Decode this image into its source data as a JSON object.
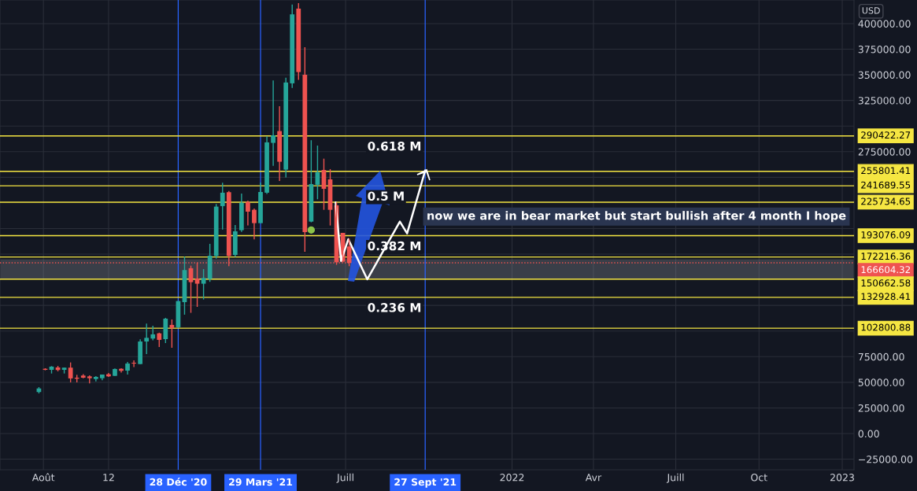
{
  "chart_data": {
    "type": "candlestick",
    "ylabel": "USD",
    "x": [
      "2020-07-27",
      "2020-08-03",
      "2020-08-10",
      "2020-08-17",
      "2020-08-24",
      "2020-08-31",
      "2020-09-07",
      "2020-09-14",
      "2020-09-21",
      "2020-09-28",
      "2020-10-05",
      "2020-10-12",
      "2020-10-19",
      "2020-10-26",
      "2020-11-02",
      "2020-11-09",
      "2020-11-16",
      "2020-11-23",
      "2020-11-30",
      "2020-12-07",
      "2020-12-14",
      "2020-12-21",
      "2020-12-28",
      "2021-01-04",
      "2021-01-11",
      "2021-01-18",
      "2021-01-25",
      "2021-02-01",
      "2021-02-08",
      "2021-02-15",
      "2021-02-22",
      "2021-03-01",
      "2021-03-08",
      "2021-03-15",
      "2021-03-22",
      "2021-03-29",
      "2021-04-05",
      "2021-04-12",
      "2021-04-19",
      "2021-04-26",
      "2021-05-03",
      "2021-05-10",
      "2021-05-17",
      "2021-05-24",
      "2021-05-31",
      "2021-06-07",
      "2021-06-14",
      "2021-06-21",
      "2021-06-28",
      "2021-07-05"
    ],
    "ohlc": [
      [
        40500,
        45300,
        39200,
        44000
      ],
      [
        63200,
        63700,
        61700,
        62200
      ],
      [
        62200,
        65800,
        58600,
        65300
      ],
      [
        64500,
        66000,
        60700,
        62000
      ],
      [
        62200,
        64300,
        58600,
        64300
      ],
      [
        64300,
        69400,
        49900,
        53800
      ],
      [
        54500,
        57300,
        49900,
        53500
      ],
      [
        56600,
        57900,
        54000,
        54500
      ],
      [
        55800,
        56800,
        48900,
        54000
      ],
      [
        53200,
        56100,
        50900,
        55300
      ],
      [
        54000,
        57600,
        52000,
        57600
      ],
      [
        57900,
        59100,
        55300,
        55800
      ],
      [
        56300,
        63500,
        56300,
        63000
      ],
      [
        63200,
        63700,
        59400,
        61200
      ],
      [
        61400,
        69900,
        57600,
        68300
      ],
      [
        69100,
        71400,
        64800,
        68300
      ],
      [
        67800,
        91900,
        67800,
        89800
      ],
      [
        89800,
        107200,
        77600,
        93400
      ],
      [
        92700,
        105200,
        90900,
        96800
      ],
      [
        97800,
        98500,
        84500,
        91400
      ],
      [
        92100,
        112900,
        88300,
        112100
      ],
      [
        106000,
        111300,
        83700,
        103100
      ],
      [
        103700,
        129300,
        103200,
        129300
      ],
      [
        128200,
        172800,
        116000,
        159500
      ],
      [
        161300,
        163800,
        117800,
        147700
      ],
      [
        151300,
        166900,
        123600,
        146200
      ],
      [
        146200,
        160500,
        130800,
        151800
      ],
      [
        150800,
        185100,
        148000,
        173500
      ],
      [
        173300,
        224000,
        170700,
        221400
      ],
      [
        221900,
        244700,
        199100,
        235000
      ],
      [
        235500,
        236700,
        163300,
        173300
      ],
      [
        174300,
        203500,
        172300,
        197300
      ],
      [
        198400,
        234200,
        196800,
        225200
      ],
      [
        226000,
        227300,
        203000,
        216500
      ],
      [
        218300,
        219600,
        189400,
        205300
      ],
      [
        205300,
        244900,
        205300,
        235700
      ],
      [
        235000,
        290000,
        233700,
        284100
      ],
      [
        283600,
        344500,
        261300,
        291000
      ],
      [
        295100,
        319400,
        246500,
        265200
      ],
      [
        257500,
        347100,
        249800,
        342500
      ],
      [
        341700,
        418500,
        337300,
        409000
      ],
      [
        414600,
        420000,
        345000,
        352700
      ],
      [
        350100,
        377000,
        177400,
        196600
      ],
      [
        206800,
        286200,
        206100,
        243400
      ],
      [
        242700,
        281000,
        228600,
        254900
      ],
      [
        257200,
        268200,
        218300,
        238800
      ],
      [
        248000,
        258000,
        203000,
        218300
      ],
      [
        222700,
        225500,
        164600,
        167100
      ],
      [
        195800,
        195800,
        167100,
        167700
      ],
      [
        182500,
        190200,
        163300,
        166600
      ]
    ],
    "colors": [
      "#26a69a",
      "#ef5350",
      "#26a69a",
      "#ef5350",
      "#26a69a",
      "#ef5350",
      "#ef5350",
      "#ef5350",
      "#ef5350",
      "#26a69a",
      "#26a69a",
      "#ef5350",
      "#26a69a",
      "#ef5350",
      "#26a69a",
      "#ef5350",
      "#26a69a",
      "#26a69a",
      "#26a69a",
      "#ef5350",
      "#26a69a",
      "#ef5350",
      "#26a69a",
      "#26a69a",
      "#ef5350",
      "#ef5350",
      "#26a69a",
      "#26a69a",
      "#26a69a",
      "#26a69a",
      "#ef5350",
      "#26a69a",
      "#26a69a",
      "#ef5350",
      "#ef5350",
      "#26a69a",
      "#26a69a",
      "#26a69a",
      "#ef5350",
      "#26a69a",
      "#26a69a",
      "#ef5350",
      "#ef5350",
      "#26a69a",
      "#26a69a",
      "#ef5350",
      "#ef5350",
      "#ef5350",
      "#ef5350",
      "#ef5350"
    ],
    "series": [
      {
        "type": "line",
        "color": "#ffffff",
        "x": [
          "2021-06-20",
          "2021-06-26",
          "2021-07-04",
          "2021-07-25",
          "2021-08-30",
          "2021-09-07",
          "2021-09-27"
        ],
        "values": [
          225500,
          168400,
          189600,
          150500,
          206800,
          195300,
          256700
        ]
      },
      {
        "type": "scatter",
        "color": "#8bc34a",
        "x": [
          "2021-05-24"
        ],
        "values": [
          198600
        ]
      }
    ],
    "xlim": [
      "2020-06-14",
      "2023-01-14"
    ],
    "xticks": [
      {
        "value": "2020-08-01",
        "label": "Août"
      },
      {
        "value": "2020-10-12",
        "label": "12"
      },
      {
        "value": "2021-07-01",
        "label": "Juill"
      },
      {
        "value": "2022-01-01",
        "label": "2022"
      },
      {
        "value": "2022-04-01",
        "label": "Avr"
      },
      {
        "value": "2022-07-01",
        "label": "Juill"
      },
      {
        "value": "2022-10-01",
        "label": "Oct"
      },
      {
        "value": "2023-01-01",
        "label": "2023"
      }
    ],
    "ylim": [
      -35300,
      423000
    ],
    "yticks": [
      {
        "value": -25000,
        "label": "−25000.00"
      },
      {
        "value": 0,
        "label": "0.00"
      },
      {
        "value": 25000,
        "label": "25000.00"
      },
      {
        "value": 50000,
        "label": "50000.00"
      },
      {
        "value": 75000,
        "label": "75000.00"
      },
      {
        "value": 100000,
        "label": null
      },
      {
        "value": 125000,
        "label": null
      },
      {
        "value": 175000,
        "label": null
      },
      {
        "value": 200000,
        "label": null
      },
      {
        "value": 250000,
        "label": null
      },
      {
        "value": 275000,
        "label": "275000.00"
      },
      {
        "value": 300000,
        "label": null
      },
      {
        "value": 325000,
        "label": "325000.00"
      },
      {
        "value": 350000,
        "label": "350000.00"
      },
      {
        "value": 375000,
        "label": "375000.00"
      },
      {
        "value": 400000,
        "label": "400000.00"
      }
    ],
    "grid": true,
    "ref_lines": [
      {
        "axis": "x",
        "value": "2020-12-28",
        "label": "28 Déc '20",
        "color": "#2962ff"
      },
      {
        "axis": "x",
        "value": "2021-03-29",
        "label": "29 Mars '21",
        "color": "#2962ff"
      },
      {
        "axis": "x",
        "value": "2021-09-27",
        "label": "27 Sept '21",
        "color": "#2962ff"
      },
      {
        "axis": "y",
        "value": 290422.27,
        "label": "290422.27",
        "color": "#f5e642"
      },
      {
        "axis": "y",
        "value": 255801.41,
        "label": "255801.41",
        "color": "#f5e642"
      },
      {
        "axis": "y",
        "value": 241689.55,
        "label": "241689.55",
        "color": "#f5e642"
      },
      {
        "axis": "y",
        "value": 225734.65,
        "label": "225734.65",
        "color": "#f5e642"
      },
      {
        "axis": "y",
        "value": 193076.09,
        "label": "193076.09",
        "color": "#f5e642"
      },
      {
        "axis": "y",
        "value": 172216.36,
        "label": "172216.36",
        "color": "#f5e642"
      },
      {
        "axis": "y",
        "value": 166604.32,
        "label": "166604.32",
        "color": "#ef5350",
        "line_style": "dotted"
      },
      {
        "axis": "y",
        "value": 150662.58,
        "label": "150662.58",
        "color": "#f5e642"
      },
      {
        "axis": "y",
        "value": 132928.41,
        "label": "132928.41",
        "color": "#f5e642"
      },
      {
        "axis": "y",
        "value": 102800.88,
        "label": "102800.88",
        "color": "#f5e642"
      }
    ],
    "bands": [
      {
        "axis": "y",
        "from": 151000,
        "to": 170000,
        "color": "#9598a1"
      }
    ],
    "annotations": [
      {
        "text": "0.618 M",
        "x": "2021-07-25",
        "y": 290422.27
      },
      {
        "text": "0.5 M",
        "x": "2021-07-25",
        "y": 241689.55
      },
      {
        "text": "0.382 M",
        "x": "2021-07-25",
        "y": 193076.09
      },
      {
        "text": "0.236 M",
        "x": "2021-07-25",
        "y": 132928.41
      },
      "now we are in bear market but start bullish after 4 month I hope"
    ]
  }
}
